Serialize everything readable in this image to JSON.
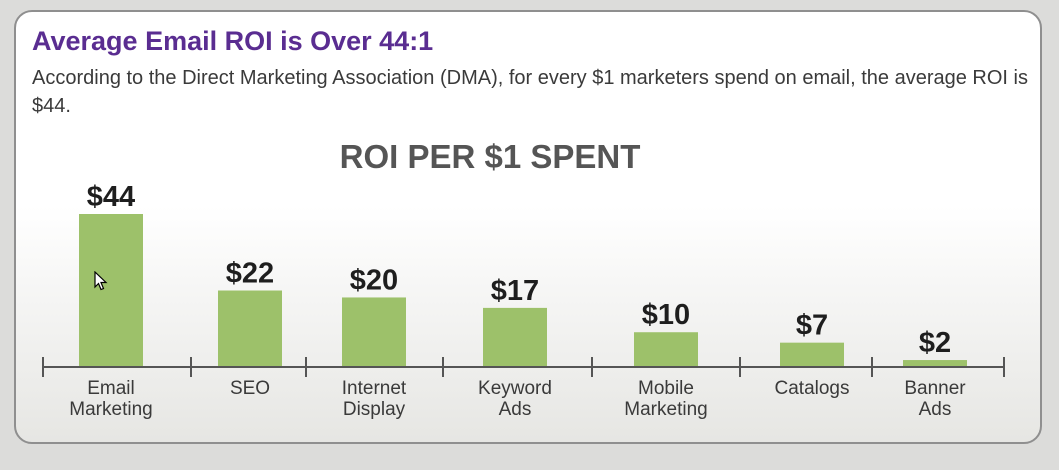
{
  "slide": {
    "headline": "Average Email ROI is Over 44:1",
    "description": "According to the Direct Marketing Association (DMA), for every $1 marketers spend on email, the average ROI is $44."
  },
  "colors": {
    "bar": "#9dc16a",
    "headline": "#5a2d91",
    "axis": "#555555",
    "text": "#3a3a3a"
  },
  "chart_data": {
    "type": "bar",
    "title": "ROI PER $1 SPENT",
    "categories": [
      "Email\nMarketing",
      "SEO",
      "Internet\nDisplay",
      "Keyword\nAds",
      "Mobile\nMarketing",
      "Catalogs",
      "Banner\nAds"
    ],
    "values": [
      44,
      22,
      20,
      17,
      10,
      7,
      2
    ],
    "data_labels": [
      "$44",
      "$22",
      "$20",
      "$17",
      "$10",
      "$7",
      "$2"
    ],
    "xlabel": "",
    "ylabel": "",
    "ylim": [
      0,
      44
    ],
    "grid": false
  }
}
